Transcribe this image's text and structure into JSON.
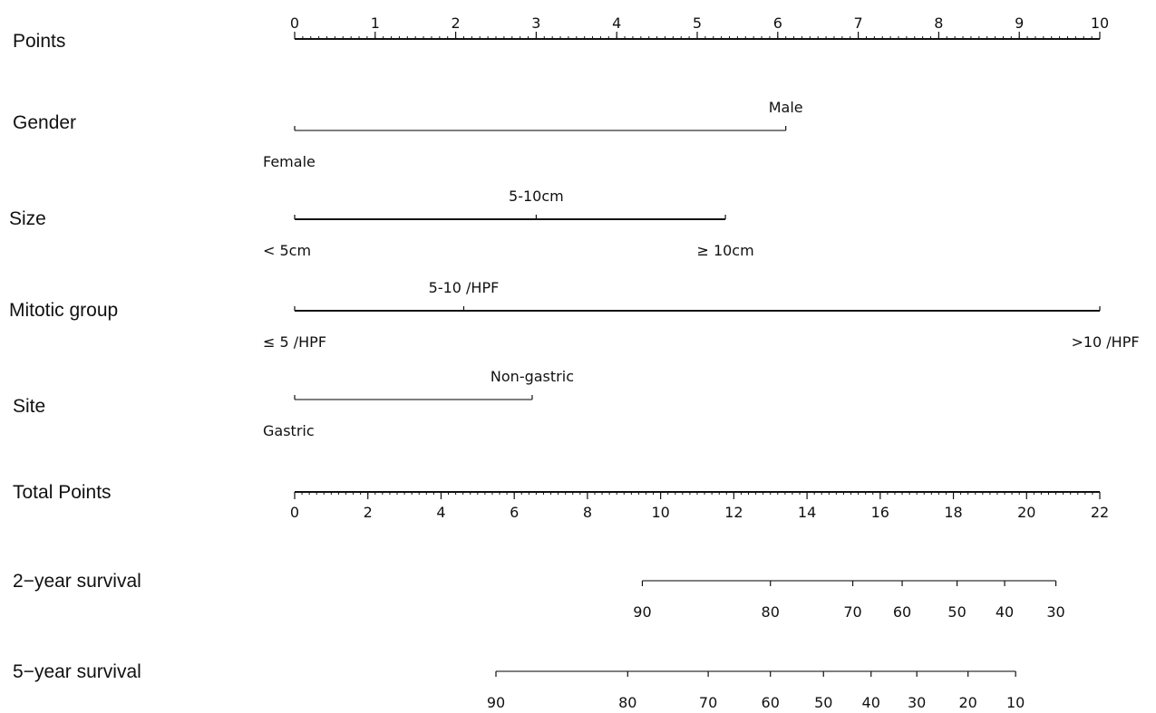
{
  "chart_data": {
    "type": "nomogram",
    "rows": {
      "points": {
        "label": "Points",
        "range": [
          0,
          10
        ],
        "major_ticks": [
          0,
          1,
          2,
          3,
          4,
          5,
          6,
          7,
          8,
          9,
          10
        ],
        "minor_step": 0.1
      },
      "gender": {
        "label": "Gender",
        "levels": [
          {
            "name": "Female",
            "points": 0,
            "label_side": "below"
          },
          {
            "name": "Male",
            "points": 6.1,
            "label_side": "above"
          }
        ]
      },
      "size": {
        "label": "Size",
        "levels": [
          {
            "name": "< 5cm",
            "points": 0,
            "label_side": "below"
          },
          {
            "name": "5-10cm",
            "points": 3.0,
            "label_side": "above"
          },
          {
            "name": "≥ 10cm",
            "points": 5.35,
            "label_side": "below"
          }
        ]
      },
      "mitotic": {
        "label": "Mitotic group",
        "levels": [
          {
            "name": "≤ 5 /HPF",
            "points": 0,
            "label_side": "below"
          },
          {
            "name": "5-10 /HPF",
            "points": 2.1,
            "label_side": "above"
          },
          {
            "name": ">10 /HPF",
            "points": 10,
            "label_side": "below"
          }
        ]
      },
      "site": {
        "label": "Site",
        "levels": [
          {
            "name": "Gastric",
            "points": 0,
            "label_side": "below"
          },
          {
            "name": "Non-gastric",
            "points": 2.95,
            "label_side": "above"
          }
        ]
      },
      "total_points": {
        "label": "Total Points",
        "range": [
          0,
          22
        ],
        "major_ticks": [
          0,
          2,
          4,
          6,
          8,
          10,
          12,
          14,
          16,
          18,
          20,
          22
        ],
        "minor_step": 0.2
      },
      "surv2": {
        "label": "2−year survival",
        "ticks": [
          {
            "value": "90",
            "total_points": 9.5
          },
          {
            "value": "80",
            "total_points": 13.0
          },
          {
            "value": "70",
            "total_points": 15.25
          },
          {
            "value": "60",
            "total_points": 16.6
          },
          {
            "value": "50",
            "total_points": 18.1
          },
          {
            "value": "40",
            "total_points": 19.4
          },
          {
            "value": "30",
            "total_points": 20.8
          }
        ]
      },
      "surv5": {
        "label": "5−year survival",
        "ticks": [
          {
            "value": "90",
            "total_points": 5.5
          },
          {
            "value": "80",
            "total_points": 9.1
          },
          {
            "value": "70",
            "total_points": 11.3
          },
          {
            "value": "60",
            "total_points": 13.0
          },
          {
            "value": "50",
            "total_points": 14.45
          },
          {
            "value": "40",
            "total_points": 15.75
          },
          {
            "value": "30",
            "total_points": 17.0
          },
          {
            "value": "20",
            "total_points": 18.4
          },
          {
            "value": "10",
            "total_points": 19.7
          }
        ]
      }
    }
  }
}
